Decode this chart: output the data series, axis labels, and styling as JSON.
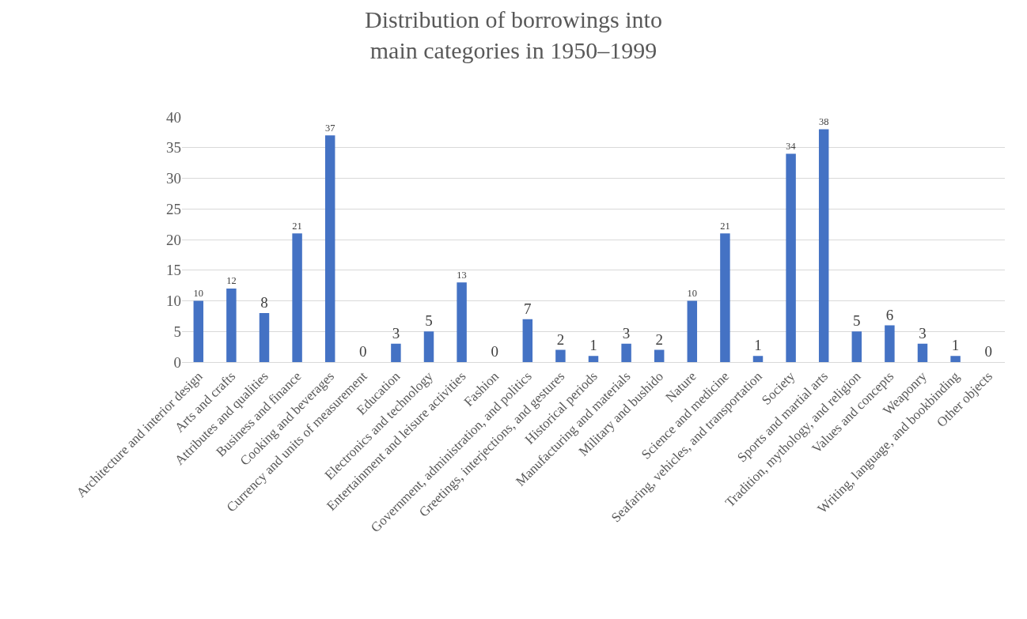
{
  "chart_data": {
    "type": "bar",
    "title": "Distribution of borrowings into\nmain categories in 1950–1999",
    "categories": [
      "Architecture and interior design",
      "Arts and crafts",
      "Attributes and qualities",
      "Business and finance",
      "Cooking and beverages",
      "Currency and units of measurement",
      "Education",
      "Electronics and technology",
      "Entertainment and leisure activities",
      "Fashion",
      "Government, administration, and politics",
      "Greetings, interjections, and gestures",
      "Historical periods",
      "Manufacturing and materials",
      "Military and bushido",
      "Nature",
      "Science and medicine",
      "Seafaring, vehicles, and transportation",
      "Society",
      "Sports and martial arts",
      "Tradition, mythology, and religion",
      "Values and concepts",
      "Weaponry",
      "Writing, language, and bookbinding",
      "Other objects"
    ],
    "values": [
      10,
      12,
      8,
      21,
      37,
      0,
      3,
      5,
      13,
      0,
      7,
      2,
      1,
      3,
      2,
      10,
      21,
      1,
      34,
      38,
      5,
      6,
      3,
      1,
      0
    ],
    "color": "#4472c4",
    "ylim": [
      0,
      40
    ],
    "yticks": [
      0,
      5,
      10,
      15,
      20,
      25,
      30,
      35,
      40
    ],
    "grid": "y",
    "data_labels": true,
    "legend": false
  }
}
